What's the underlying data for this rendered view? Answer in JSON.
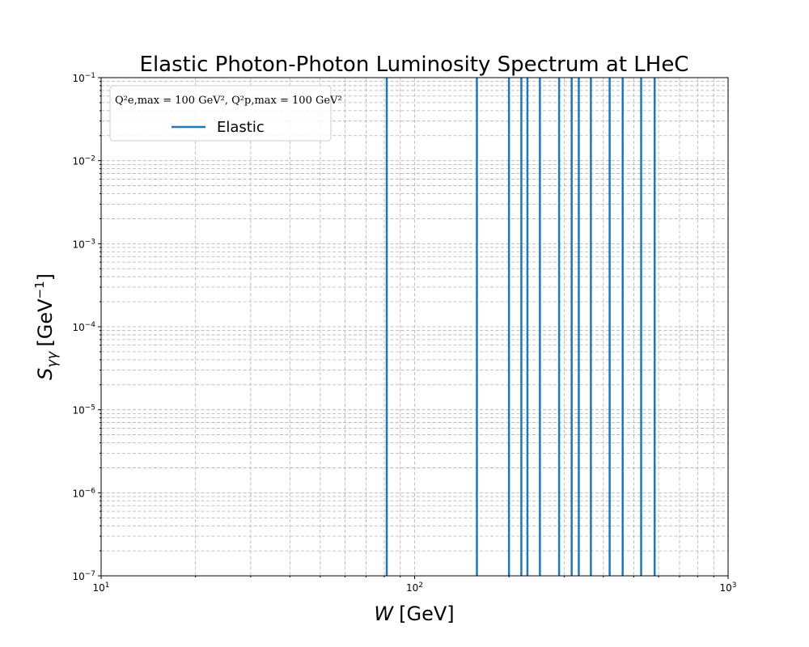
{
  "chart_data": {
    "type": "line",
    "title": "Elastic Photon-Photon Luminosity Spectrum at LHeC",
    "xlabel": {
      "var": "W",
      "unit": "[GeV]"
    },
    "ylabel": {
      "var": "S",
      "sub": "γγ",
      "unit_pre": "[GeV",
      "unit_exp": "−1",
      "unit_post": "]"
    },
    "xscale": "log",
    "yscale": "log",
    "xlim": [
      10,
      1000
    ],
    "ylim": [
      1e-07,
      0.1
    ],
    "x_ticks": [
      {
        "value": 10,
        "base": "10",
        "exp": "1"
      },
      {
        "value": 100,
        "base": "10",
        "exp": "2"
      },
      {
        "value": 1000,
        "base": "10",
        "exp": "3"
      }
    ],
    "y_ticks": [
      {
        "value": 1e-07,
        "base": "10",
        "exp": "−7"
      },
      {
        "value": 1e-06,
        "base": "10",
        "exp": "−6"
      },
      {
        "value": 1e-05,
        "base": "10",
        "exp": "−5"
      },
      {
        "value": 0.0001,
        "base": "10",
        "exp": "−4"
      },
      {
        "value": 0.001,
        "base": "10",
        "exp": "−3"
      },
      {
        "value": 0.01,
        "base": "10",
        "exp": "−2"
      },
      {
        "value": 0.1,
        "base": "10",
        "exp": "−1"
      }
    ],
    "grid": true,
    "grid_style": "dashed",
    "legend": {
      "placement": "upper-left",
      "title": "Q²e,max = 100 GeV², Q²p,max = 100 GeV²"
    },
    "series": [
      {
        "name": "Elastic",
        "color": "#1f77b4",
        "style": "vertical-lines",
        "x": [
          81.5,
          158,
          200,
          219,
          229,
          251,
          289,
          317,
          334,
          365,
          419,
          461,
          528,
          583
        ]
      }
    ]
  }
}
